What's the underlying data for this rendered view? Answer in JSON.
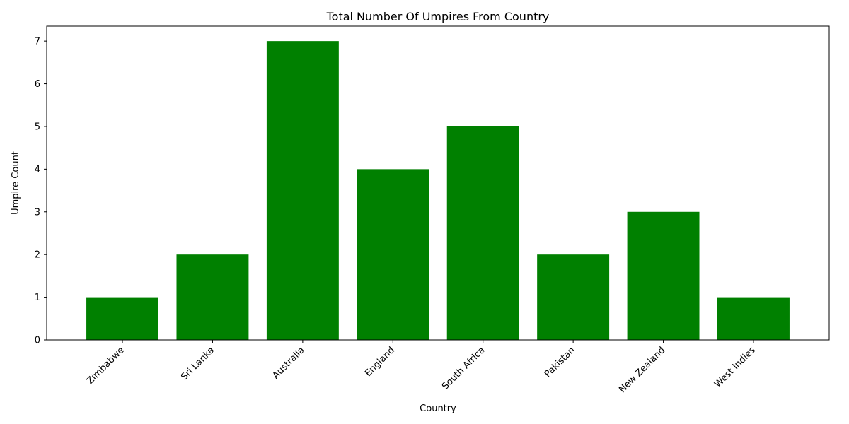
{
  "chart_data": {
    "type": "bar",
    "title": "Total Number Of Umpires From Country",
    "xlabel": "Country",
    "ylabel": "Umpire Count",
    "categories": [
      "Zimbabwe",
      "Sri Lanka",
      "Australia",
      "England",
      "South Africa",
      "Pakistan",
      "New Zealand",
      "West Indies"
    ],
    "values": [
      1,
      2,
      7,
      4,
      5,
      2,
      3,
      1
    ],
    "ylim": [
      0,
      7.35
    ],
    "yticks": [
      0,
      1,
      2,
      3,
      4,
      5,
      6,
      7
    ],
    "bar_color": "#008000",
    "grid": false
  }
}
